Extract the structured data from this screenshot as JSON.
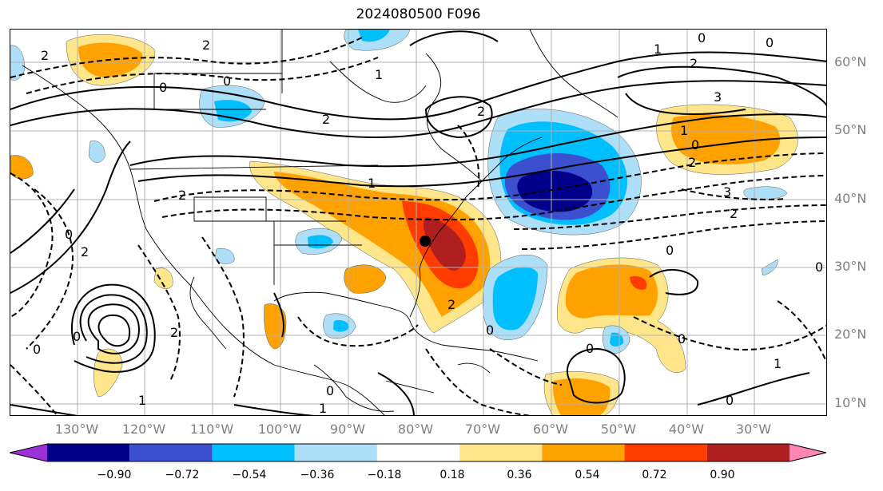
{
  "title": "2024080500 F096",
  "latitude_labels": [
    "60°N",
    "50°N",
    "40°N",
    "30°N",
    "20°N",
    "10°N"
  ],
  "longitude_labels": [
    "130°W",
    "120°W",
    "110°W",
    "100°W",
    "90°W",
    "80°W",
    "70°W",
    "60°W",
    "50°W",
    "40°W",
    "30°W"
  ],
  "colorbar": {
    "ticks": [
      "−0.90",
      "−0.72",
      "−0.54",
      "−0.36",
      "−0.18",
      "0.18",
      "0.36",
      "0.54",
      "0.72",
      "0.90"
    ],
    "colors": [
      "#9b30d9",
      "#00008b",
      "#3a50cf",
      "#00bfff",
      "#aedff8",
      "#ffffff",
      "#ffe68a",
      "#ffa200",
      "#ff3b00",
      "#b01f1f",
      "#ff85b2"
    ]
  },
  "contour_labels": [
    {
      "text": "2"
    },
    {
      "text": "2"
    },
    {
      "text": "0"
    },
    {
      "text": "0"
    },
    {
      "text": "1"
    },
    {
      "text": "2"
    },
    {
      "text": "2"
    },
    {
      "text": "0"
    },
    {
      "text": "1"
    },
    {
      "text": "2"
    },
    {
      "text": "0"
    },
    {
      "text": "3"
    },
    {
      "text": "3"
    },
    {
      "text": "2"
    },
    {
      "text": "0"
    },
    {
      "text": "1"
    },
    {
      "text": "2"
    },
    {
      "text": "2"
    },
    {
      "text": "0"
    },
    {
      "text": "2"
    },
    {
      "text": "0"
    },
    {
      "text": "0"
    },
    {
      "text": "1"
    },
    {
      "text": "1"
    },
    {
      "text": "0"
    },
    {
      "text": "0"
    },
    {
      "text": "1"
    },
    {
      "text": "0"
    },
    {
      "text": "0"
    },
    {
      "text": "0"
    },
    {
      "text": "0"
    },
    {
      "text": "1"
    },
    {
      "text": "2"
    },
    {
      "text": "2"
    },
    {
      "text": "0"
    }
  ]
}
